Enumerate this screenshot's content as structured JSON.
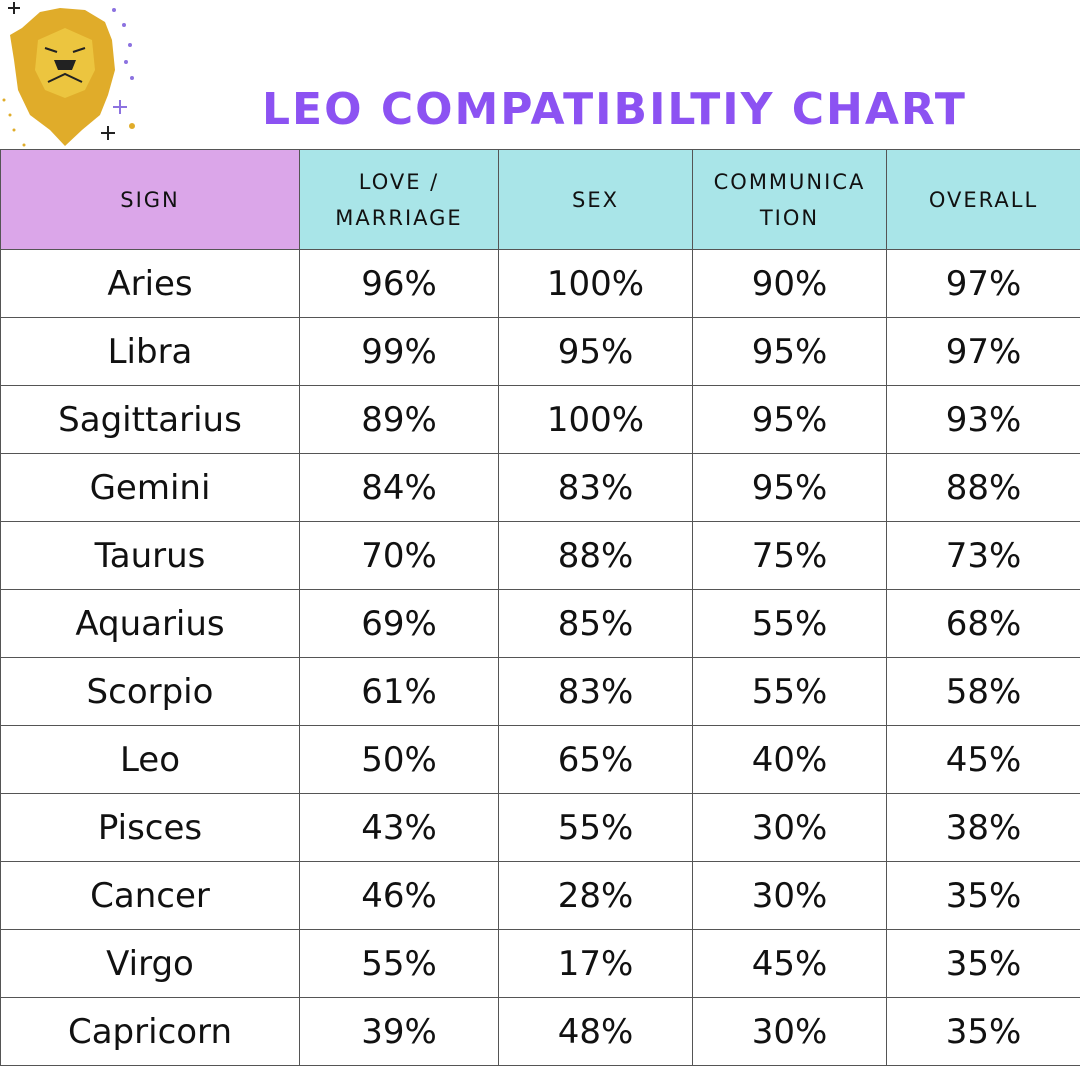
{
  "title": "LEO COMPATIBILTIY CHART",
  "colors": {
    "title": "#8c52f2",
    "sign_header": "#dba6e9",
    "other_header": "#a9e5e8",
    "logo": "#e0ac2a"
  },
  "logo": {
    "icon": "lion-head-icon"
  },
  "chart_data": {
    "type": "table",
    "columns": [
      "SIGN",
      "LOVE /\nMARRIAGE",
      "SEX",
      "COMMUNICA\nTION",
      "OVERALL"
    ],
    "rows": [
      [
        "Aries",
        "96%",
        "100%",
        "90%",
        "97%"
      ],
      [
        "Libra",
        "99%",
        "95%",
        "95%",
        "97%"
      ],
      [
        "Sagittarius",
        "89%",
        "100%",
        "95%",
        "93%"
      ],
      [
        "Gemini",
        "84%",
        "83%",
        "95%",
        "88%"
      ],
      [
        "Taurus",
        "70%",
        "88%",
        "75%",
        "73%"
      ],
      [
        "Aquarius",
        "69%",
        "85%",
        "55%",
        "68%"
      ],
      [
        "Scorpio",
        "61%",
        "83%",
        "55%",
        "58%"
      ],
      [
        "Leo",
        "50%",
        "65%",
        "40%",
        "45%"
      ],
      [
        "Pisces",
        "43%",
        "55%",
        "30%",
        "38%"
      ],
      [
        "Cancer",
        "46%",
        "28%",
        "30%",
        "35%"
      ],
      [
        "Virgo",
        "55%",
        "17%",
        "45%",
        "35%"
      ],
      [
        "Capricorn",
        "39%",
        "48%",
        "30%",
        "35%"
      ]
    ]
  }
}
